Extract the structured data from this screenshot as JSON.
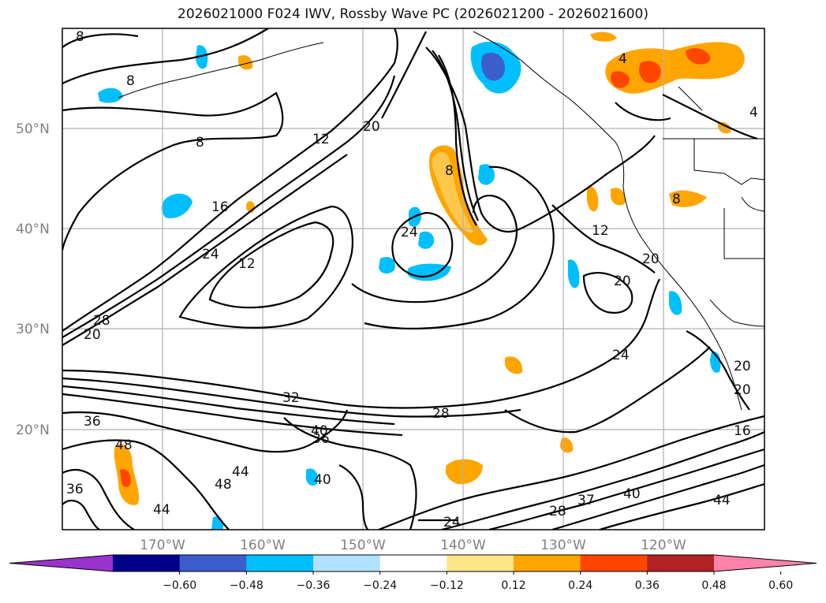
{
  "title": "2026021000 F024 IWV, Rossby Wave PC (2026021200 - 2026021600)",
  "map": {
    "projection": "equirectangular",
    "lon_range": [
      -180,
      -110
    ],
    "lat_range": [
      10,
      60
    ],
    "grid": true,
    "lat_labels": [
      "50°N",
      "40°N",
      "30°N",
      "20°N"
    ],
    "lon_labels": [
      "170°W",
      "160°W",
      "150°W",
      "140°W",
      "130°W",
      "120°W"
    ],
    "contour_color": "#000000",
    "contour_labels": [
      "8",
      "8",
      "8",
      "4",
      "4",
      "12",
      "20",
      "16",
      "24",
      "12",
      "24",
      "8",
      "12",
      "20",
      "20",
      "8",
      "20",
      "24",
      "20",
      "20",
      "28",
      "28",
      "32",
      "40",
      "36",
      "36",
      "48",
      "44",
      "48",
      "44",
      "40",
      "16",
      "40",
      "37",
      "28",
      "24",
      "44",
      "36"
    ]
  },
  "colorbar": {
    "extend": "both",
    "ticks": [
      "−0.60",
      "−0.48",
      "−0.36",
      "−0.24",
      "−0.12",
      "0.12",
      "0.24",
      "0.36",
      "0.48",
      "0.60"
    ],
    "colors": [
      "#9933cc",
      "#00008b",
      "#3a5fcd",
      "#00bfff",
      "#b0e2ff",
      "#ffffff",
      "#ffe58a",
      "#ffa500",
      "#ff4500",
      "#b22222",
      "#ff82ab"
    ]
  }
}
